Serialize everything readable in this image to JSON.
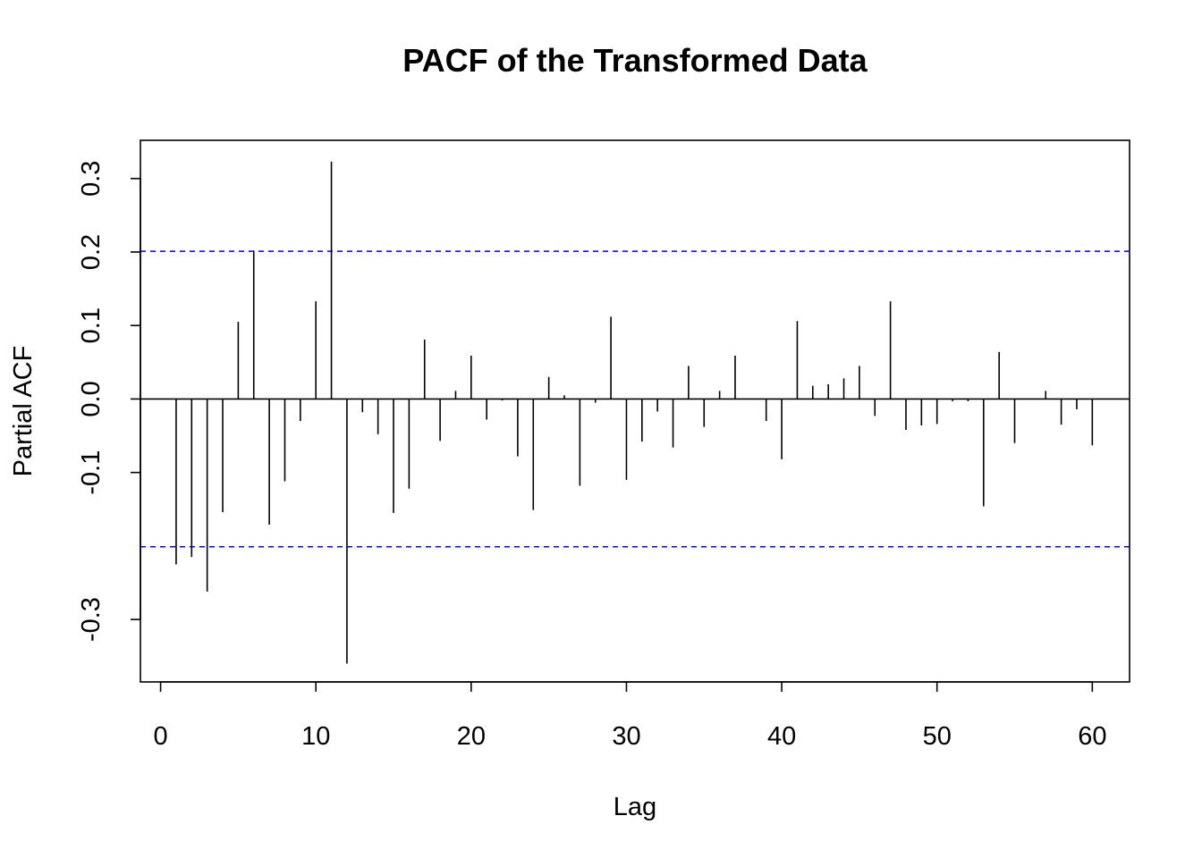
{
  "chart_data": {
    "type": "bar",
    "title": "PACF of the Transformed Data",
    "xlabel": "Lag",
    "ylabel": "Partial ACF",
    "xlim": [
      -1.3,
      62.4
    ],
    "ylim": [
      -0.385,
      0.352
    ],
    "xticks": [
      0,
      10,
      20,
      30,
      40,
      50,
      60
    ],
    "yticks": [
      -0.3,
      -0.1,
      0.0,
      0.1,
      0.2,
      0.3
    ],
    "ytick_labels": [
      "-0.3",
      "-0.1",
      "0.0",
      "0.1",
      "0.2",
      "0.3"
    ],
    "confidence_bound": 0.201,
    "confidence_color": "#0000ff",
    "zero_line": true,
    "lags": [
      1,
      2,
      3,
      4,
      5,
      6,
      7,
      8,
      9,
      10,
      11,
      12,
      13,
      14,
      15,
      16,
      17,
      18,
      19,
      20,
      21,
      22,
      23,
      24,
      25,
      26,
      27,
      28,
      29,
      30,
      31,
      32,
      33,
      34,
      35,
      36,
      37,
      38,
      39,
      40,
      41,
      42,
      43,
      44,
      45,
      46,
      47,
      48,
      49,
      50,
      51,
      52,
      53,
      54,
      55,
      56,
      57,
      58,
      59,
      60
    ],
    "values": [
      -0.225,
      -0.215,
      -0.262,
      -0.154,
      0.105,
      0.202,
      -0.171,
      -0.112,
      -0.03,
      0.133,
      0.323,
      -0.36,
      -0.018,
      -0.048,
      -0.155,
      -0.122,
      0.081,
      -0.057,
      0.011,
      0.059,
      -0.028,
      -0.002,
      -0.078,
      -0.151,
      0.03,
      0.005,
      -0.118,
      -0.005,
      0.112,
      -0.11,
      -0.058,
      -0.017,
      -0.066,
      0.045,
      -0.038,
      0.011,
      0.059,
      0.0,
      -0.03,
      -0.082,
      0.106,
      0.018,
      0.02,
      0.028,
      0.045,
      -0.023,
      0.133,
      -0.042,
      -0.036,
      -0.034,
      -0.003,
      -0.003,
      -0.146,
      0.064,
      -0.06,
      0.0,
      0.011,
      -0.035,
      -0.014,
      -0.063
    ]
  }
}
